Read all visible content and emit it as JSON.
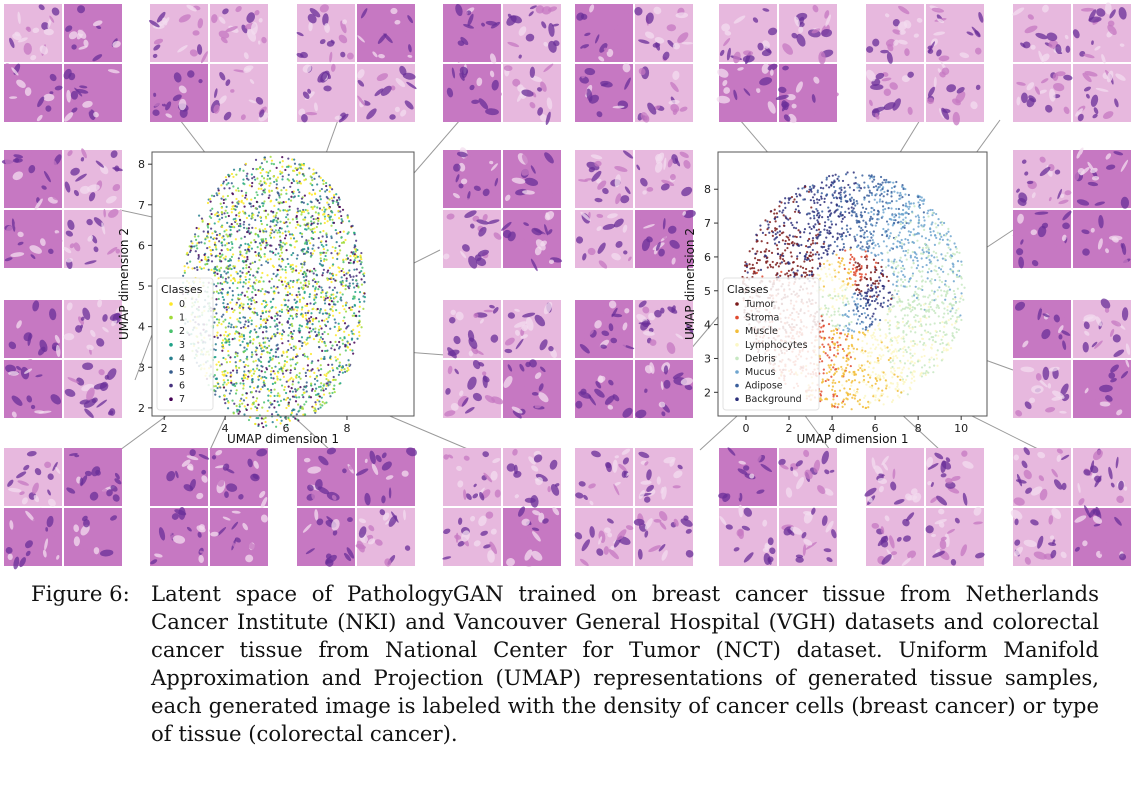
{
  "colors": {
    "tissue_light": "#e7b8de",
    "tissue_mid": "#c678c2",
    "tissue_dark": "#6a2f98",
    "connector": "#9a9a9a"
  },
  "chart_data": [
    {
      "type": "scatter",
      "title": "",
      "xlabel": "UMAP dimension 1",
      "ylabel": "UMAP dimension 2",
      "xticks": [
        2,
        4,
        6,
        8
      ],
      "yticks": [
        2,
        3,
        4,
        5,
        6,
        7,
        8
      ],
      "xlim": [
        1.6,
        10.2
      ],
      "ylim": [
        1.8,
        8.3
      ],
      "grid": false,
      "legend": {
        "title": "Classes",
        "placement": "center-left"
      },
      "cluster": {
        "center": [
          5.6,
          4.85
        ],
        "radius": [
          3.0,
          3.35
        ]
      },
      "series": [
        {
          "name": "0",
          "color": "#fde725"
        },
        {
          "name": "1",
          "color": "#a0da39"
        },
        {
          "name": "2",
          "color": "#4ac16d"
        },
        {
          "name": "3",
          "color": "#1fa187"
        },
        {
          "name": "4",
          "color": "#277f8e"
        },
        {
          "name": "5",
          "color": "#365c8d"
        },
        {
          "name": "6",
          "color": "#46327e"
        },
        {
          "name": "7",
          "color": "#440154"
        }
      ]
    },
    {
      "type": "scatter",
      "title": "",
      "xlabel": "UMAP dimension 1",
      "ylabel": "UMAP dimension 2",
      "xticks": [
        0,
        2,
        4,
        6,
        8,
        10
      ],
      "yticks": [
        2,
        3,
        4,
        5,
        6,
        7,
        8
      ],
      "xlim": [
        -1.3,
        11.2
      ],
      "ylim": [
        1.3,
        9.1
      ],
      "grid": false,
      "legend": {
        "title": "Classes",
        "placement": "center-left"
      },
      "cluster": {
        "center": [
          5.0,
          5.0
        ],
        "radius": [
          5.2,
          3.5
        ]
      },
      "series": [
        {
          "name": "Tumor",
          "color": "#7b1a1a"
        },
        {
          "name": "Stroma",
          "color": "#e04a2f"
        },
        {
          "name": "Muscle",
          "color": "#f2bd3a"
        },
        {
          "name": "Lymphocytes",
          "color": "#fbf7c6"
        },
        {
          "name": "Debris",
          "color": "#c7e8c2"
        },
        {
          "name": "Mucus",
          "color": "#6fa5cf"
        },
        {
          "name": "Adipose",
          "color": "#3a5f9c"
        },
        {
          "name": "Background",
          "color": "#2b2f7a"
        }
      ]
    }
  ],
  "caption": {
    "label": "Figure 6:",
    "text": "Latent space of PathologyGAN trained on breast cancer tissue from Netherlands Cancer Institute (NKI) and Vancouver General Hospital (VGH) datasets and colorectal cancer tissue from National Center for Tumor (NCT) dataset. Uniform Manifold Approximation and Projection (UMAP) representations of generated tissue samples, each generated image is labeled with the density of cancer cells (breast cancer) or type of tissue (colorectal cancer)."
  }
}
